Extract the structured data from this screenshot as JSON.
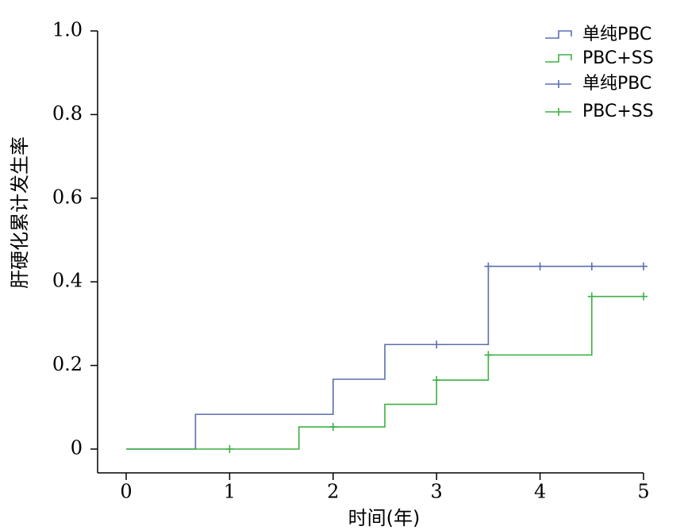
{
  "chart_data": {
    "type": "line",
    "title": "",
    "xlabel": "时间(年)",
    "ylabel": "肝硬化累计发生率",
    "xlim": [
      0,
      5
    ],
    "ylim": [
      0,
      1.0
    ],
    "x_ticks": [
      0,
      1,
      2,
      3,
      4,
      5
    ],
    "x_tick_labels": [
      "0",
      "1",
      "2",
      "3",
      "4",
      "5"
    ],
    "y_ticks": [
      0,
      0.2,
      0.4,
      0.6,
      0.8,
      1.0
    ],
    "y_tick_labels": [
      "0",
      "0.2",
      "0.4",
      "0.6",
      "0.8",
      "1.0"
    ],
    "grid": false,
    "legend_position": "top-right",
    "legend_entries": [
      "单纯PBC",
      "PBC+SS",
      "单纯PBC",
      "PBC+SS"
    ],
    "series": [
      {
        "name": "单纯PBC",
        "color": "#5a6fad",
        "steps": [
          [
            0,
            0
          ],
          [
            0.67,
            0.083
          ],
          [
            2.0,
            0.167
          ],
          [
            2.5,
            0.25
          ],
          [
            3.5,
            0.437
          ]
        ],
        "end_x": 5.0,
        "censored": [
          [
            3.0,
            0.25
          ],
          [
            3.5,
            0.437
          ],
          [
            4.0,
            0.437
          ],
          [
            4.5,
            0.437
          ],
          [
            5.0,
            0.437
          ]
        ]
      },
      {
        "name": "PBC+SS",
        "color": "#3fb044",
        "steps": [
          [
            0,
            0
          ],
          [
            1.67,
            0.053
          ],
          [
            2.5,
            0.107
          ],
          [
            3.0,
            0.165
          ],
          [
            3.5,
            0.225
          ],
          [
            4.5,
            0.365
          ]
        ],
        "end_x": 5.0,
        "censored": [
          [
            1.0,
            0
          ],
          [
            2.0,
            0.053
          ],
          [
            3.0,
            0.165
          ],
          [
            3.5,
            0.225
          ],
          [
            4.5,
            0.365
          ],
          [
            5.0,
            0.365
          ]
        ]
      }
    ]
  }
}
